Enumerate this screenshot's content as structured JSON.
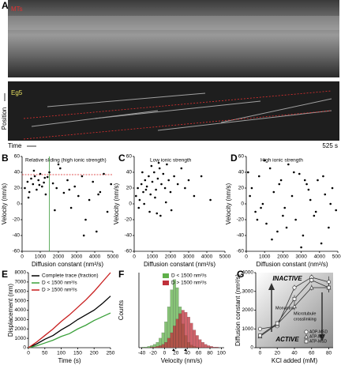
{
  "panel_a": {
    "letter": "A",
    "top_label": "MTs",
    "bottom_label": "Eg5",
    "y_label": "Position",
    "x_label": "Time",
    "scale_label": "525 s"
  },
  "chart_data": [
    {
      "letter": "B",
      "type": "scatter",
      "title": "Relative sliding (high ionic strength)",
      "x_label": "Diffusion constant (nm²/s)",
      "y_label": "Velocity (nm/s)",
      "xlim": [
        0,
        5000
      ],
      "xticks": [
        0,
        1000,
        2000,
        3000,
        4000,
        5000
      ],
      "ylim": [
        -60,
        60
      ],
      "yticks": [
        -60,
        -40,
        -20,
        0,
        20,
        40,
        60
      ],
      "color": "#000000",
      "hline": 37,
      "hline_color": "#d62020",
      "vline": 1500,
      "vline_color": "#3a9a3a",
      "x": [
        150,
        300,
        400,
        500,
        600,
        700,
        800,
        900,
        1000,
        1100,
        1200,
        1300,
        1400,
        1500,
        1700,
        1900,
        2100,
        2300,
        2500,
        2700,
        2900,
        3100,
        3300,
        3500,
        3700,
        3900,
        4100,
        4300,
        4500,
        4700,
        4900,
        350,
        650,
        950,
        1250,
        1800,
        2600,
        3400,
        4200,
        2000
      ],
      "values": [
        20,
        28,
        15,
        32,
        25,
        35,
        18,
        30,
        38,
        22,
        27,
        12,
        34,
        40,
        26,
        20,
        45,
        14,
        30,
        -5,
        22,
        10,
        35,
        -20,
        5,
        28,
        -35,
        15,
        38,
        -10,
        25,
        8,
        42,
        24,
        33,
        -8,
        18,
        -40,
        12,
        50
      ]
    },
    {
      "letter": "C",
      "type": "scatter",
      "title": "Low ionic strength",
      "x_label": "Diffusion constant (nm²/s)",
      "y_label": "Velocity (nm/s)",
      "xlim": [
        0,
        5000
      ],
      "xticks": [
        0,
        1000,
        2000,
        3000,
        4000,
        5000
      ],
      "ylim": [
        -60,
        60
      ],
      "yticks": [
        -60,
        -40,
        -20,
        0,
        20,
        40,
        60
      ],
      "color": "#000000",
      "x": [
        100,
        200,
        300,
        400,
        500,
        600,
        700,
        800,
        900,
        1000,
        1100,
        1200,
        1300,
        1400,
        1500,
        1600,
        1700,
        1800,
        1900,
        2000,
        2200,
        2400,
        2600,
        2800,
        3000,
        3300,
        3700,
        4200,
        250,
        550,
        850,
        1150,
        1450,
        1750,
        2050,
        450,
        950,
        1350,
        650,
        1250
      ],
      "values": [
        10,
        20,
        5,
        25,
        15,
        30,
        22,
        35,
        12,
        28,
        40,
        18,
        32,
        45,
        25,
        38,
        20,
        50,
        30,
        15,
        35,
        25,
        45,
        20,
        30,
        10,
        35,
        5,
        -5,
        0,
        -10,
        8,
        -15,
        2,
        -8,
        40,
        48,
        52,
        18,
        -12
      ]
    },
    {
      "letter": "D",
      "type": "scatter",
      "title": "High ionic strength",
      "x_label": "Diffusion constant (nm²/s)",
      "y_label": "Velocity (nm/s)",
      "xlim": [
        0,
        5000
      ],
      "xticks": [
        0,
        1000,
        2000,
        3000,
        4000,
        5000
      ],
      "ylim": [
        -60,
        60
      ],
      "yticks": [
        -60,
        -40,
        -20,
        0,
        20,
        40,
        60
      ],
      "color": "#000000",
      "x": [
        100,
        300,
        500,
        700,
        900,
        1100,
        1300,
        1500,
        1700,
        1900,
        2100,
        2300,
        2500,
        2700,
        2900,
        3100,
        3300,
        3500,
        3700,
        3900,
        4100,
        4300,
        4500,
        4700,
        4900,
        200,
        600,
        1000,
        1400,
        1800,
        2200,
        2600,
        3000,
        3400,
        3800,
        4200,
        4600,
        800,
        2000,
        3200
      ],
      "values": [
        40,
        20,
        -10,
        35,
        0,
        -25,
        45,
        15,
        -35,
        30,
        -5,
        50,
        10,
        -20,
        38,
        -40,
        25,
        5,
        -15,
        30,
        -50,
        12,
        -30,
        20,
        -8,
        10,
        -20,
        55,
        -45,
        25,
        -30,
        40,
        -55,
        18,
        -10,
        35,
        0,
        -5,
        -15,
        30
      ]
    },
    {
      "letter": "E",
      "type": "line",
      "x_label": "Time (s)",
      "y_label": "Displacement (nm)",
      "xlim": [
        0,
        250
      ],
      "xticks": [
        0,
        50,
        100,
        150,
        200,
        250
      ],
      "ylim": [
        0,
        8000
      ],
      "yticks": [
        0,
        1000,
        2000,
        3000,
        4000,
        5000,
        6000,
        7000,
        8000
      ],
      "x": [
        0,
        25,
        50,
        75,
        100,
        125,
        150,
        175,
        200,
        225,
        250
      ],
      "series": [
        {
          "name": "Complete trace (fraction)",
          "color": "#000000",
          "values": [
            0,
            400,
            900,
            1300,
            1900,
            2400,
            3000,
            3500,
            4000,
            4700,
            5500
          ]
        },
        {
          "name": "D < 1500 nm²/s",
          "color": "#3aa03a",
          "values": [
            0,
            200,
            500,
            800,
            1200,
            1500,
            2000,
            2400,
            2900,
            3300,
            3700
          ]
        },
        {
          "name": "D > 1500 nm²/s",
          "color": "#c81e1e",
          "values": [
            0,
            600,
            1300,
            2000,
            2800,
            3500,
            4300,
            5100,
            6000,
            7000,
            8000
          ]
        }
      ]
    },
    {
      "letter": "F",
      "type": "histogram",
      "x_label": "Velocity (nm/s)",
      "y_label": "Counts",
      "xlim": [
        -45,
        105
      ],
      "xticks": [
        -40,
        -20,
        0,
        20,
        40,
        60,
        80,
        100
      ],
      "ylim": [
        0,
        110
      ],
      "bins": [
        -40,
        -35,
        -30,
        -25,
        -20,
        -15,
        -10,
        -5,
        0,
        5,
        10,
        15,
        20,
        25,
        30,
        35,
        40,
        45,
        50,
        55,
        60,
        65,
        70,
        75,
        80,
        85,
        90,
        95,
        100
      ],
      "markers": [
        16,
        37
      ],
      "series": [
        {
          "name": "D < 1500 nm²/s",
          "color": "#5fb04a",
          "values": [
            1,
            1,
            2,
            3,
            5,
            8,
            14,
            22,
            38,
            60,
            85,
            100,
            88,
            60,
            35,
            18,
            8,
            4,
            2,
            1,
            0,
            0,
            0,
            0,
            0,
            0,
            0,
            0
          ]
        },
        {
          "name": "D > 1500 nm²/s",
          "color": "#c0303a",
          "values": [
            0,
            0,
            0,
            1,
            1,
            2,
            3,
            5,
            8,
            14,
            22,
            32,
            42,
            50,
            55,
            52,
            45,
            36,
            26,
            18,
            12,
            8,
            5,
            3,
            2,
            1,
            1,
            0
          ]
        }
      ]
    },
    {
      "letter": "G",
      "type": "errorline",
      "x_label": "KCl added (mM)",
      "y_label": "Diffusion constant (nm²/s)",
      "xlim": [
        -5,
        85
      ],
      "xticks": [
        0,
        20,
        40,
        60,
        80
      ],
      "ylim": [
        0,
        4000
      ],
      "yticks": [
        0,
        1000,
        2000,
        3000,
        4000
      ],
      "annotations": [
        "INACTIVE",
        "ACTIVE",
        "Monastrol",
        "Microtubule",
        "crosslinking"
      ],
      "x": [
        0,
        20,
        40,
        60,
        80
      ],
      "series": [
        {
          "name": "ADP-MSD",
          "marker": "circle",
          "color": "#333333",
          "values": [
            1000,
            1150,
            3200,
            3750,
            3500
          ],
          "errors": [
            80,
            100,
            150,
            150,
            300
          ]
        },
        {
          "name": "ATP-MD",
          "marker": "triangle",
          "color": "#333333",
          "values": [
            600,
            1250,
            2200,
            3200,
            3200
          ],
          "errors": [
            60,
            100,
            200,
            150,
            250
          ]
        },
        {
          "name": "ATP-MSD",
          "marker": "square",
          "color": "#333333",
          "values": [
            650,
            1300,
            2600,
            3600,
            3200
          ],
          "errors": [
            60,
            100,
            200,
            150,
            250
          ]
        }
      ]
    }
  ]
}
